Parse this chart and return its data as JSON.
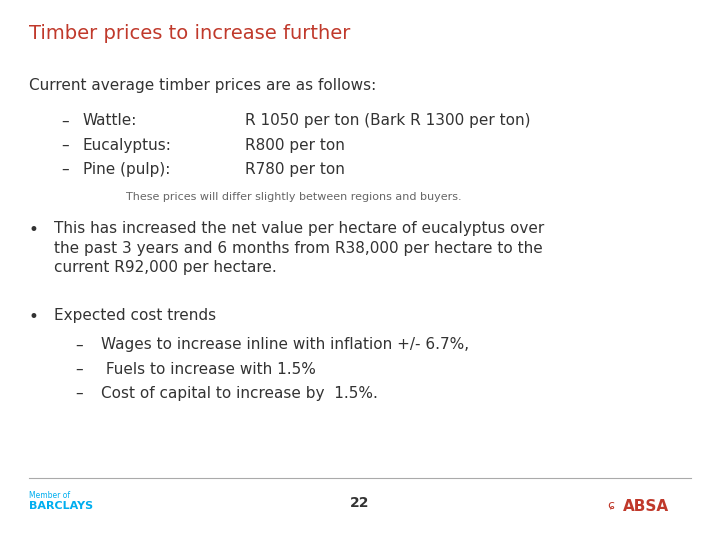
{
  "title": "Timber prices to increase further",
  "title_color": "#C0392B",
  "title_fontsize": 14,
  "background_color": "#FFFFFF",
  "subtitle": "Current average timber prices are as follows:",
  "subtitle_fontsize": 11,
  "subtitle_color": "#333333",
  "dash_labels": [
    "Wattle:",
    "Eucalyptus:",
    "Pine (pulp):"
  ],
  "dash_values": [
    "R 1050 per ton (Bark R 1300 per ton)",
    "R800 per ton",
    "R780 per ton"
  ],
  "note": "These prices will differ slightly between regions and buyers.",
  "note_fontsize": 8,
  "note_color": "#666666",
  "bullet1_line1": "This has increased the net value per hectare of eucalyptus over",
  "bullet1_line2": "the past 3 years and 6 months from R38,000 per hectare to the",
  "bullet1_line3": "current R92,000 per hectare.",
  "bullet2": "Expected cost trends",
  "sub1": "Wages to increase inline with inflation +/- 6.7%,",
  "sub2": " Fuels to increase with 1.5%",
  "sub3": "Cost of capital to increase by  1.5%.",
  "item_fontsize": 11,
  "dash_color": "#333333",
  "footer_page": "22",
  "footer_left_line1": "Member of",
  "footer_left_line2": "BARCLAYS",
  "footer_left_color": "#00AEEF",
  "footer_right_text": "ABSA",
  "footer_right_color": "#C0392B",
  "footer_line_color": "#AAAAAA"
}
